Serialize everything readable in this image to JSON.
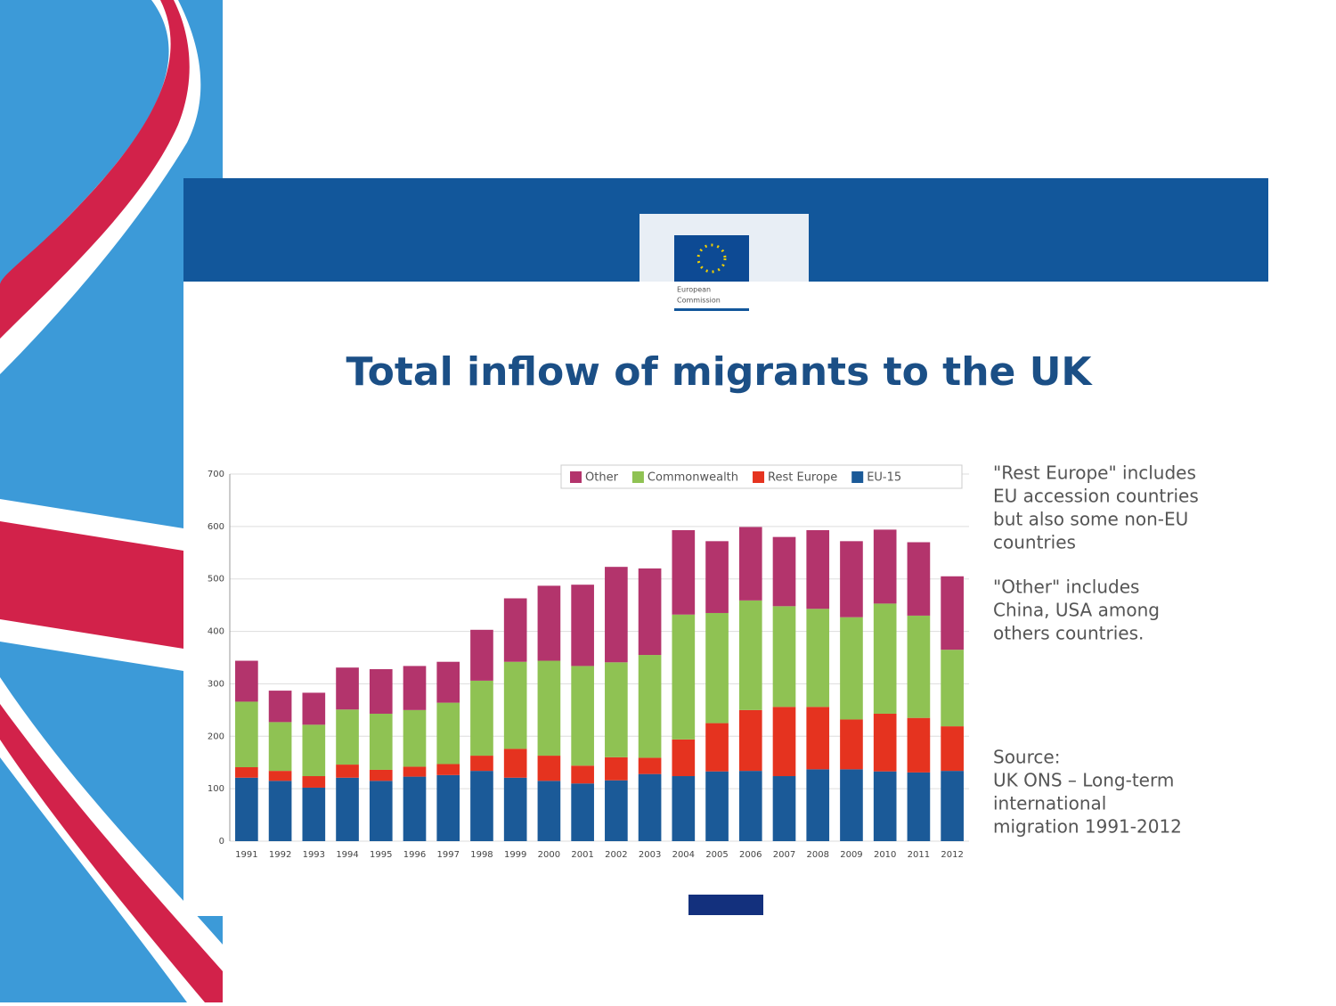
{
  "logo_text": [
    "European",
    "Commission"
  ],
  "notes": [
    [
      "\"Rest Europe\" includes",
      "EU accession countries",
      "but also some non-EU",
      "countries"
    ],
    [
      "\"Other\" includes",
      "China, USA among",
      "others countries."
    ],
    [
      "Source:",
      "UK ONS – Long-term",
      "international",
      "migration 1991-2012"
    ]
  ],
  "chart_data": {
    "type": "stacked_bar",
    "title": "Total inflow of migrants to the UK",
    "categories": [
      "1991",
      "1992",
      "1993",
      "1994",
      "1995",
      "1996",
      "1997",
      "1998",
      "1999",
      "2000",
      "2001",
      "2002",
      "2003",
      "2004",
      "2005",
      "2006",
      "2007",
      "2008",
      "2009",
      "2010",
      "2011",
      "2012"
    ],
    "series": [
      {
        "name": "EU-15",
        "color": "#1b5a98",
        "values": [
          121,
          115,
          102,
          121,
          115,
          123,
          126,
          134,
          121,
          115,
          110,
          116,
          128,
          124,
          133,
          134,
          124,
          137,
          137,
          133,
          131,
          134
        ]
      },
      {
        "name": "Rest Europe",
        "color": "#e5331f",
        "values": [
          20,
          19,
          22,
          25,
          21,
          19,
          21,
          29,
          55,
          48,
          34,
          44,
          31,
          70,
          92,
          116,
          132,
          119,
          95,
          110,
          104,
          85
        ]
      },
      {
        "name": "Commonwealth",
        "color": "#8fc253",
        "values": [
          125,
          93,
          98,
          105,
          107,
          108,
          117,
          143,
          166,
          181,
          190,
          181,
          196,
          238,
          210,
          209,
          192,
          187,
          195,
          210,
          195,
          146
        ]
      },
      {
        "name": "Other",
        "color": "#b3346c",
        "values": [
          78,
          60,
          61,
          80,
          85,
          84,
          78,
          97,
          121,
          143,
          155,
          182,
          165,
          161,
          137,
          140,
          132,
          150,
          145,
          141,
          140,
          140
        ]
      }
    ],
    "ylim": [
      0,
      700
    ],
    "yticks": [
      0,
      100,
      200,
      300,
      400,
      500,
      600,
      700
    ],
    "grid": true
  }
}
